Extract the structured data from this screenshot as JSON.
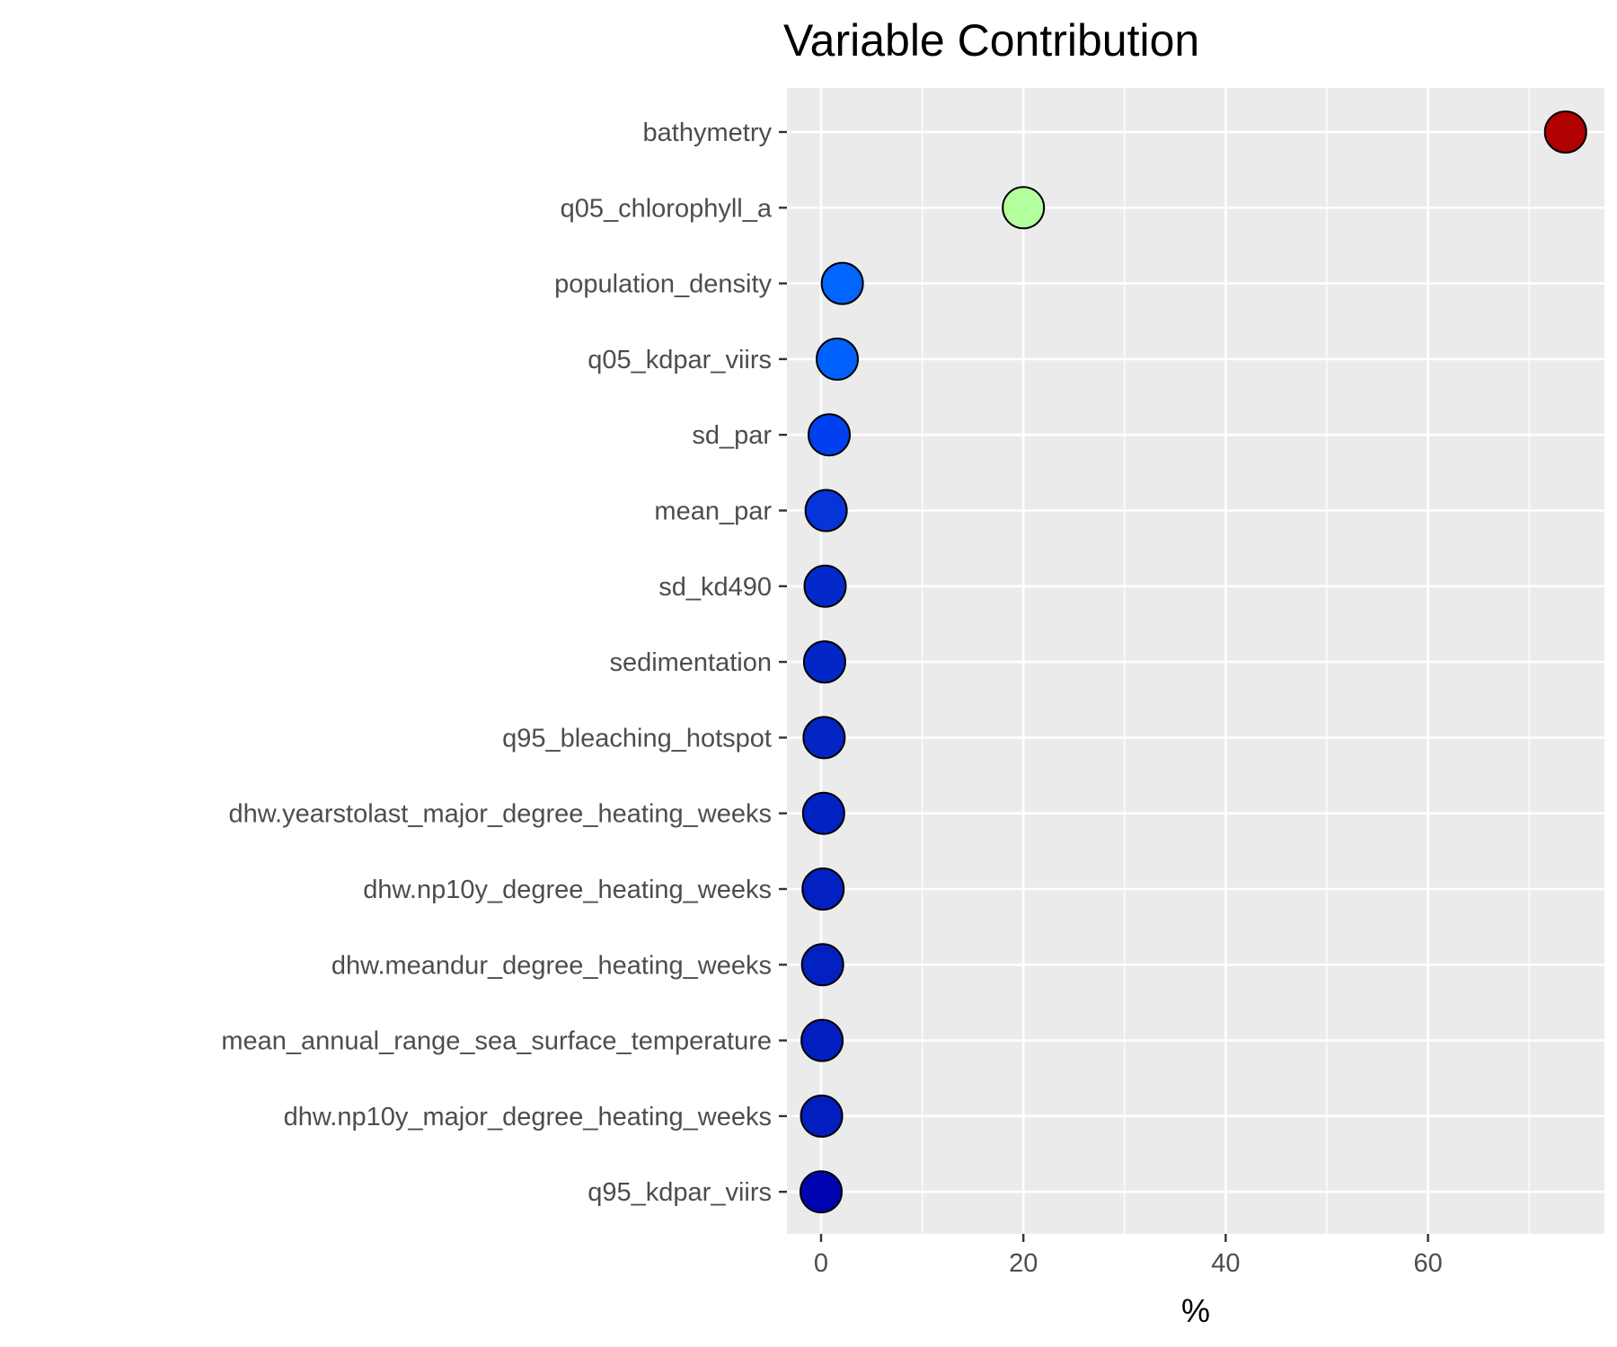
{
  "chart_data": {
    "type": "scatter",
    "title": "Variable Contribution",
    "xlabel": "%",
    "ylabel": "",
    "xlim": [
      -3.5,
      77
    ],
    "x_ticks": [
      0,
      20,
      40,
      60
    ],
    "grid": true,
    "legend": "none",
    "panel_background": "#ebebeb",
    "points": [
      {
        "label": "bathymetry",
        "value": 73.6,
        "color": "#b00000"
      },
      {
        "label": "q05_chlorophyll_a",
        "value": 20.0,
        "color": "#b3ff9e"
      },
      {
        "label": "population_density",
        "value": 2.1,
        "color": "#0066ff"
      },
      {
        "label": "q05_kdpar_viirs",
        "value": 1.6,
        "color": "#0061ff"
      },
      {
        "label": "sd_par",
        "value": 0.8,
        "color": "#0040ee"
      },
      {
        "label": "mean_par",
        "value": 0.5,
        "color": "#0534d8"
      },
      {
        "label": "sd_kd490",
        "value": 0.4,
        "color": "#0429cb"
      },
      {
        "label": "sedimentation",
        "value": 0.35,
        "color": "#0326c6"
      },
      {
        "label": "q95_bleaching_hotspot",
        "value": 0.3,
        "color": "#0424c3"
      },
      {
        "label": "dhw.yearstolast_major_degree_heating_weeks",
        "value": 0.25,
        "color": "#0322c3"
      },
      {
        "label": "dhw.np10y_degree_heating_weeks",
        "value": 0.2,
        "color": "#0321c2"
      },
      {
        "label": "dhw.meandur_degree_heating_weeks",
        "value": 0.15,
        "color": "#0320c1"
      },
      {
        "label": "mean_annual_range_sea_surface_temperature",
        "value": 0.1,
        "color": "#031fc0"
      },
      {
        "label": "dhw.np10y_major_degree_heating_weeks",
        "value": 0.05,
        "color": "#021ebf"
      },
      {
        "label": "q95_kdpar_viirs",
        "value": 0.0,
        "color": "#0004b0"
      }
    ]
  }
}
